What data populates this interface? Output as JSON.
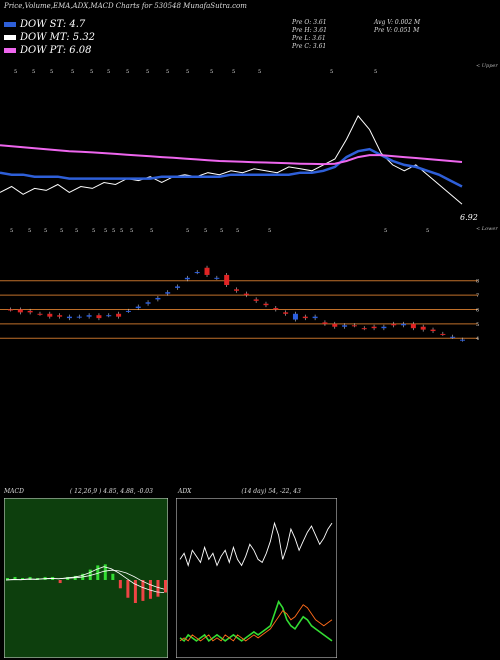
{
  "title": "Price,Volume,EMA,ADX,MACD Charts for 530548 MunafaSutra.com",
  "legend": [
    {
      "label": "DOW ST: 4.7",
      "color": "#2e5fd8"
    },
    {
      "label": "DOW MT: 5.32",
      "color": "#ffffff"
    },
    {
      "label": "DOW PT: 6.08",
      "color": "#ee66ee"
    }
  ],
  "ohlc": {
    "open": "Pre  O: 3.61",
    "high": "Pre  H: 3.61",
    "low": "Pre  L: 3.61",
    "close": "Pre  C: 3.61",
    "avg_vol": "Avg V: 0.002  M",
    "pre_vol": "Pre  V: 0.051 M"
  },
  "price_panel": {
    "upper_label": "< Upper",
    "lower_label": "< Lower",
    "last_price": "6.92",
    "top_markers": [
      "5",
      "5",
      "5",
      "5",
      "5",
      "5",
      "5",
      "5",
      "5",
      "5",
      "5",
      "5",
      "5",
      "5",
      "5"
    ],
    "bottom_markers": [
      "5",
      "5",
      "5",
      "5",
      "5",
      "5",
      "5",
      "5",
      "5",
      "5",
      "5",
      "5",
      "5",
      "5",
      "5",
      "5",
      "5",
      "5"
    ]
  },
  "level_panel": {
    "level_labels": [
      "8",
      "7",
      "6",
      "5",
      "4"
    ]
  },
  "macd": {
    "label": "MACD",
    "params": "( 12,26,9 ) 4.85, 4.88, -0.03"
  },
  "adx": {
    "label": "ADX",
    "params": "(14 day) 54, -22, 43"
  },
  "chart_data": [
    {
      "type": "line",
      "title": "Price",
      "series": [
        {
          "color": "#ffffff",
          "values": [
            5.2,
            5.5,
            5.1,
            5.4,
            5.3,
            5.6,
            5.2,
            5.5,
            5.4,
            5.7,
            5.6,
            5.9,
            5.8,
            6.0,
            5.7,
            6.0,
            6.1,
            6.0,
            6.2,
            6.1,
            6.3,
            6.2,
            6.4,
            6.3,
            6.2,
            6.5,
            6.4,
            6.3,
            6.6,
            6.9,
            7.9,
            9.1,
            8.4,
            7.2,
            6.6,
            6.3,
            6.6,
            6.1,
            5.6,
            5.1,
            4.6
          ]
        },
        {
          "color": "#2e5fd8",
          "values": [
            6.2,
            6.1,
            6.1,
            6.0,
            6.0,
            6.0,
            5.9,
            5.9,
            5.9,
            5.9,
            5.9,
            5.9,
            5.9,
            5.9,
            6.0,
            6.0,
            6.0,
            6.0,
            6.0,
            6.0,
            6.1,
            6.1,
            6.1,
            6.1,
            6.1,
            6.1,
            6.2,
            6.2,
            6.3,
            6.5,
            7.0,
            7.3,
            7.4,
            7.1,
            6.8,
            6.6,
            6.5,
            6.3,
            6.1,
            5.8,
            5.5
          ]
        },
        {
          "color": "#ee66ee",
          "values": [
            7.6,
            7.55,
            7.5,
            7.45,
            7.4,
            7.35,
            7.3,
            7.27,
            7.24,
            7.2,
            7.16,
            7.12,
            7.08,
            7.04,
            7.0,
            6.96,
            6.92,
            6.88,
            6.84,
            6.8,
            6.78,
            6.76,
            6.74,
            6.72,
            6.7,
            6.68,
            6.66,
            6.65,
            6.64,
            6.66,
            6.8,
            7.0,
            7.1,
            7.1,
            7.05,
            7.0,
            6.95,
            6.9,
            6.85,
            6.8,
            6.75
          ]
        }
      ]
    },
    {
      "type": "bar",
      "title": "Levels",
      "ylim": [
        3.6,
        9.3
      ],
      "y_ticks": [
        8,
        7,
        6,
        5,
        4
      ],
      "candles": [
        {
          "o": 6.0,
          "c": 6.0,
          "up": false
        },
        {
          "o": 6.0,
          "c": 5.8,
          "up": false
        },
        {
          "o": 5.9,
          "c": 5.8,
          "up": false
        },
        {
          "o": 5.7,
          "c": 5.7,
          "up": false
        },
        {
          "o": 5.7,
          "c": 5.5,
          "up": false
        },
        {
          "o": 5.6,
          "c": 5.5,
          "up": false
        },
        {
          "o": 5.5,
          "c": 5.4,
          "up": true
        },
        {
          "o": 5.5,
          "c": 5.5,
          "up": true
        },
        {
          "o": 5.5,
          "c": 5.6,
          "up": true
        },
        {
          "o": 5.6,
          "c": 5.4,
          "up": false
        },
        {
          "o": 5.6,
          "c": 5.6,
          "up": true
        },
        {
          "o": 5.5,
          "c": 5.7,
          "up": false
        },
        {
          "o": 5.9,
          "c": 5.9,
          "up": true
        },
        {
          "o": 6.1,
          "c": 6.2,
          "up": true
        },
        {
          "o": 6.4,
          "c": 6.5,
          "up": true
        },
        {
          "o": 6.7,
          "c": 6.8,
          "up": true
        },
        {
          "o": 7.1,
          "c": 7.2,
          "up": true
        },
        {
          "o": 7.5,
          "c": 7.6,
          "up": true
        },
        {
          "o": 8.1,
          "c": 8.2,
          "up": true
        },
        {
          "o": 8.6,
          "c": 8.6,
          "up": true
        },
        {
          "o": 8.9,
          "c": 8.4,
          "up": false
        },
        {
          "o": 8.2,
          "c": 8.2,
          "up": true
        },
        {
          "o": 8.4,
          "c": 7.7,
          "up": false
        },
        {
          "o": 7.4,
          "c": 7.3,
          "up": false
        },
        {
          "o": 7.1,
          "c": 7.0,
          "up": false
        },
        {
          "o": 6.7,
          "c": 6.6,
          "up": false
        },
        {
          "o": 6.4,
          "c": 6.3,
          "up": false
        },
        {
          "o": 6.1,
          "c": 6.0,
          "up": false
        },
        {
          "o": 5.8,
          "c": 5.7,
          "up": false
        },
        {
          "o": 5.7,
          "c": 5.3,
          "up": true
        },
        {
          "o": 5.5,
          "c": 5.4,
          "up": false
        },
        {
          "o": 5.5,
          "c": 5.4,
          "up": true
        },
        {
          "o": 5.1,
          "c": 5.0,
          "up": false
        },
        {
          "o": 5.0,
          "c": 4.8,
          "up": false
        },
        {
          "o": 4.9,
          "c": 4.8,
          "up": true
        },
        {
          "o": 4.9,
          "c": 4.9,
          "up": false
        },
        {
          "o": 4.7,
          "c": 4.7,
          "up": false
        },
        {
          "o": 4.8,
          "c": 4.7,
          "up": false
        },
        {
          "o": 4.8,
          "c": 4.7,
          "up": true
        },
        {
          "o": 5.0,
          "c": 4.9,
          "up": false
        },
        {
          "o": 5.0,
          "c": 4.9,
          "up": true
        },
        {
          "o": 5.0,
          "c": 4.7,
          "up": false
        },
        {
          "o": 4.8,
          "c": 4.6,
          "up": false
        },
        {
          "o": 4.6,
          "c": 4.5,
          "up": false
        },
        {
          "o": 4.3,
          "c": 4.3,
          "up": false
        },
        {
          "o": 4.1,
          "c": 4.1,
          "up": true
        },
        {
          "o": 3.9,
          "c": 3.9,
          "up": true
        }
      ]
    },
    {
      "type": "line",
      "title": "MACD",
      "series": [
        {
          "name": "MACD",
          "color": "#ffffff",
          "values": [
            0,
            0.02,
            0.01,
            0.03,
            0.02,
            0.04,
            0.05,
            0.03,
            0.06,
            0.08,
            0.12,
            0.2,
            0.3,
            0.38,
            0.32,
            0.2,
            0.05,
            -0.1,
            -0.2,
            -0.28,
            -0.34,
            -0.36
          ]
        },
        {
          "name": "Signal",
          "color": "#ffffff",
          "values": [
            0,
            0.01,
            0.01,
            0.02,
            0.02,
            0.03,
            0.04,
            0.04,
            0.05,
            0.06,
            0.08,
            0.12,
            0.18,
            0.25,
            0.28,
            0.26,
            0.2,
            0.1,
            -0.02,
            -0.12,
            -0.2,
            -0.26
          ]
        }
      ]
    },
    {
      "type": "line",
      "title": "ADX",
      "series": [
        {
          "name": "ADX",
          "color": "#ffffff",
          "values": [
            30,
            32,
            28,
            33,
            31,
            29,
            34,
            30,
            32,
            28,
            31,
            33,
            29,
            34,
            30,
            28,
            31,
            35,
            33,
            30,
            29,
            32,
            36,
            42,
            38,
            30,
            34,
            40,
            37,
            33,
            36,
            39,
            41,
            38,
            35,
            37,
            40,
            42
          ]
        },
        {
          "name": "+DI",
          "color": "#33dd33",
          "values": [
            4,
            3,
            5,
            4,
            3,
            4,
            5,
            3,
            4,
            5,
            4,
            3,
            4,
            5,
            4,
            3,
            4,
            5,
            6,
            5,
            6,
            7,
            8,
            12,
            16,
            14,
            10,
            8,
            7,
            9,
            11,
            10,
            8,
            7,
            6,
            5,
            4,
            3
          ]
        },
        {
          "name": "-DI",
          "color": "#ff6a1a",
          "values": [
            3,
            4,
            3,
            5,
            4,
            3,
            4,
            5,
            3,
            4,
            3,
            5,
            4,
            3,
            5,
            4,
            3,
            4,
            5,
            4,
            5,
            6,
            7,
            9,
            11,
            13,
            12,
            10,
            11,
            13,
            15,
            14,
            12,
            10,
            9,
            8,
            9,
            10
          ]
        }
      ]
    }
  ]
}
